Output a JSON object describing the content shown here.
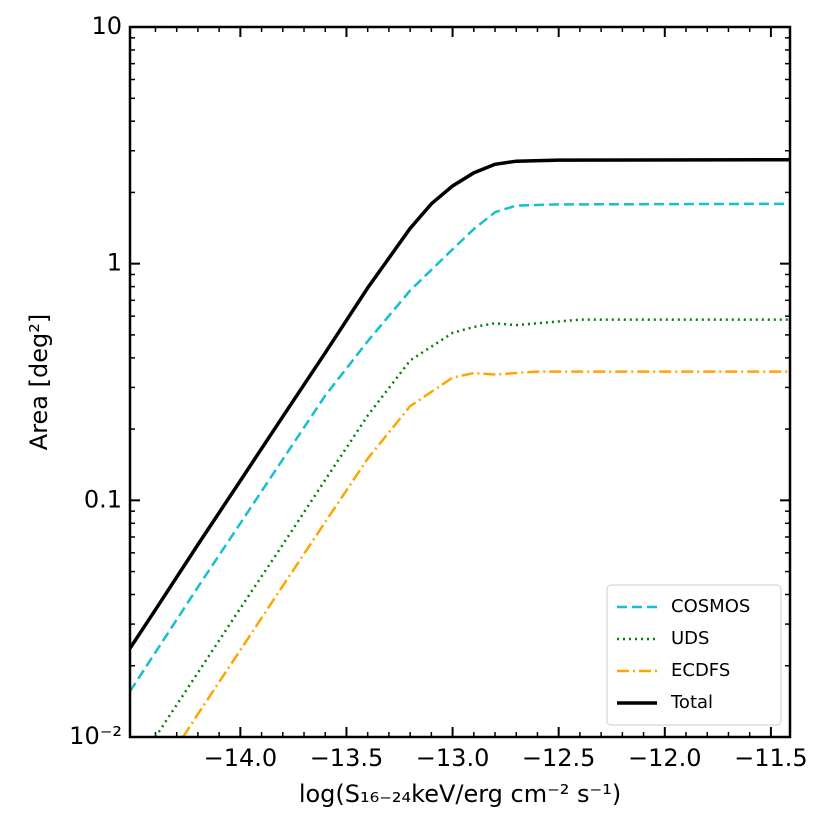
{
  "chart_data": {
    "type": "line",
    "xlabel": "log(S₁₆₋₂₄keV/erg cm⁻² s⁻¹)",
    "ylabel": "Area [deg²]",
    "xlim": [
      -14.52,
      -11.41
    ],
    "ylim": [
      0.01,
      10
    ],
    "log_y": true,
    "xticks": [
      {
        "value": -14.0,
        "label": "−14.0"
      },
      {
        "value": -13.5,
        "label": "−13.5"
      },
      {
        "value": -13.0,
        "label": "−13.0"
      },
      {
        "value": -12.5,
        "label": "−12.5"
      },
      {
        "value": -12.0,
        "label": "−12.0"
      },
      {
        "value": -11.5,
        "label": "−11.5"
      }
    ],
    "yticks": [
      {
        "value": 0.01,
        "label": "10⁻²"
      },
      {
        "value": 0.1,
        "label": "0.1"
      },
      1,
      10
    ],
    "legend": "lower right",
    "series": [
      {
        "name": "COSMOS",
        "color": "#17becf",
        "linestyle": "dashed",
        "x": [
          -14.52,
          -14.4,
          -14.2,
          -14.0,
          -13.8,
          -13.6,
          -13.4,
          -13.2,
          -13.0,
          -12.9,
          -12.8,
          -12.7,
          -12.5,
          -11.41
        ],
        "values": [
          0.0156,
          0.0228,
          0.043,
          0.08,
          0.149,
          0.277,
          0.47,
          0.77,
          1.15,
          1.4,
          1.65,
          1.76,
          1.78,
          1.79
        ]
      },
      {
        "name": "UDS",
        "color": "#008000",
        "linestyle": "dotted",
        "x": [
          -14.4,
          -14.2,
          -14.0,
          -13.8,
          -13.6,
          -13.4,
          -13.2,
          -13.0,
          -12.9,
          -12.8,
          -12.7,
          -12.5,
          -12.4,
          -11.41
        ],
        "values": [
          0.01,
          0.0187,
          0.035,
          0.065,
          0.122,
          0.228,
          0.39,
          0.51,
          0.54,
          0.56,
          0.55,
          0.57,
          0.58,
          0.58
        ]
      },
      {
        "name": "ECDFS",
        "color": "#ffa500",
        "linestyle": "dashdot",
        "x": [
          -14.27,
          -14.2,
          -14.0,
          -13.8,
          -13.6,
          -13.4,
          -13.2,
          -13.0,
          -12.9,
          -12.8,
          -12.6,
          -11.41
        ],
        "values": [
          0.01,
          0.0125,
          0.0233,
          0.0435,
          0.081,
          0.15,
          0.25,
          0.33,
          0.345,
          0.34,
          0.35,
          0.35
        ]
      },
      {
        "name": "Total",
        "color": "#000000",
        "linestyle": "solid",
        "x": [
          -14.52,
          -14.4,
          -14.2,
          -14.0,
          -13.8,
          -13.6,
          -13.4,
          -13.2,
          -13.1,
          -13.0,
          -12.9,
          -12.8,
          -12.7,
          -12.5,
          -11.41
        ],
        "values": [
          0.0237,
          0.0345,
          0.065,
          0.121,
          0.226,
          0.42,
          0.79,
          1.41,
          1.79,
          2.13,
          2.42,
          2.63,
          2.71,
          2.74,
          2.75
        ]
      }
    ]
  }
}
